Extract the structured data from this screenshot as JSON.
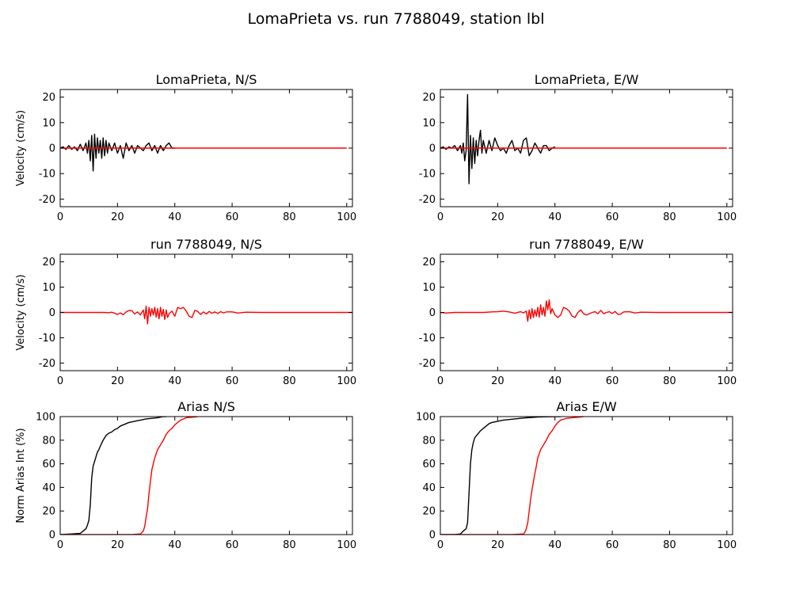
{
  "figure": {
    "title": "LomaPrieta vs. run 7788049, station lbl"
  },
  "colors": {
    "recorded": "#000000",
    "simulated": "#ff0000"
  },
  "chart_data": [
    {
      "type": "line",
      "id": "p1",
      "title": "LomaPrieta, N/S",
      "ylabel": "Velocity (cm/s)",
      "xlim": [
        0,
        102
      ],
      "ylim": [
        -23,
        23
      ],
      "xticks": [
        0,
        20,
        40,
        60,
        80,
        100
      ],
      "yticks": [
        -20,
        -10,
        0,
        10,
        20
      ],
      "series": [
        {
          "color": "#000000",
          "x": [
            0,
            1,
            2,
            3,
            4,
            5,
            6,
            7,
            8,
            9,
            9.5,
            10,
            10.5,
            11,
            11.5,
            12,
            12.5,
            13,
            13.5,
            14,
            14.5,
            15,
            15.5,
            16,
            16.5,
            17,
            18,
            19,
            20,
            21,
            22,
            23,
            24,
            25,
            26,
            27,
            28,
            29,
            30,
            31,
            32,
            33,
            34,
            35,
            36,
            37,
            38,
            39,
            40
          ],
          "y": [
            0,
            0.5,
            -0.5,
            1,
            -0.5,
            0.5,
            -1,
            1.5,
            -1,
            2,
            -2,
            3,
            -5,
            5,
            -9,
            5.5,
            -4,
            4,
            -2,
            3,
            -4,
            4,
            -3,
            3,
            -2,
            2,
            -1,
            2,
            -2,
            1,
            -4,
            2,
            -1,
            1,
            -2,
            1,
            0,
            -1,
            1,
            2,
            -1,
            1,
            -2,
            1,
            -1,
            1,
            2,
            0,
            0
          ]
        },
        {
          "color": "#ff0000",
          "x": [
            0,
            100
          ],
          "y": [
            0,
            0
          ]
        }
      ]
    },
    {
      "type": "line",
      "id": "p2",
      "title": "LomaPrieta, E/W",
      "ylabel": "",
      "xlim": [
        0,
        102
      ],
      "ylim": [
        -23,
        23
      ],
      "xticks": [
        0,
        20,
        40,
        60,
        80,
        100
      ],
      "yticks": [
        -20,
        -10,
        0,
        10,
        20
      ],
      "series": [
        {
          "color": "#000000",
          "x": [
            0,
            1,
            2,
            3,
            4,
            5,
            6,
            7,
            7.5,
            8,
            8.5,
            9,
            9.5,
            10,
            10.5,
            11,
            11.5,
            12,
            12.5,
            13,
            13.5,
            14,
            14.5,
            15,
            16,
            17,
            18,
            19,
            20,
            21,
            22,
            23,
            24,
            25,
            26,
            27,
            28,
            29,
            30,
            31,
            32,
            33,
            34,
            35,
            36,
            37,
            38,
            39,
            40
          ],
          "y": [
            0,
            0.5,
            -0.5,
            0.5,
            0,
            1,
            -1,
            1,
            -2,
            2,
            -5,
            -1,
            21,
            -14,
            5,
            -8,
            4,
            -6,
            3,
            -3,
            3,
            7,
            -2,
            3,
            -2,
            3,
            -1,
            4,
            1,
            -1,
            0,
            -2,
            1,
            3,
            -1,
            0,
            -2,
            3,
            4,
            -3,
            -1,
            2,
            0,
            -2,
            1,
            1,
            -1,
            0,
            0.5
          ]
        },
        {
          "color": "#ff0000",
          "x": [
            0,
            100
          ],
          "y": [
            0,
            0
          ]
        }
      ]
    },
    {
      "type": "line",
      "id": "p3",
      "title": "run 7788049, N/S",
      "ylabel": "Velocity (cm/s)",
      "xlim": [
        0,
        102
      ],
      "ylim": [
        -23,
        23
      ],
      "xticks": [
        0,
        20,
        40,
        60,
        80,
        100
      ],
      "yticks": [
        -20,
        -10,
        0,
        10,
        20
      ],
      "series": [
        {
          "color": "#ff0000",
          "x": [
            0,
            5,
            10,
            15,
            17,
            18,
            19,
            20,
            21,
            22,
            23,
            24,
            25,
            26,
            27,
            28,
            29,
            29.5,
            30,
            30.5,
            31,
            31.5,
            32,
            32.5,
            33,
            33.5,
            34,
            34.5,
            35,
            35.5,
            36,
            36.5,
            37,
            37.5,
            38,
            39,
            40,
            41,
            42,
            43,
            44,
            45,
            46,
            47,
            48,
            49,
            50,
            51,
            52,
            53,
            54,
            55,
            56,
            57,
            58,
            60,
            62,
            65,
            70,
            75,
            80,
            85,
            90,
            95,
            100,
            102
          ],
          "y": [
            0,
            0,
            0,
            0,
            -0.1,
            0.1,
            -0.3,
            -0.8,
            -0.2,
            -0.9,
            0.2,
            0.8,
            0.7,
            -0.6,
            0.2,
            -1,
            1,
            -2.5,
            2.5,
            -4.5,
            2,
            -1.5,
            1.5,
            -1,
            2,
            -1.8,
            1.5,
            -2.5,
            2,
            -1.5,
            1.2,
            -2.8,
            1,
            -2,
            -0.5,
            0.5,
            -1.5,
            2,
            1.5,
            2,
            0.5,
            -1.5,
            -2,
            0.8,
            0.4,
            -0.8,
            0.2,
            -0.6,
            0.4,
            -0.3,
            0.2,
            -0.4,
            0.3,
            -0.2,
            0.2,
            0.2,
            -0.2,
            0.1,
            0,
            0,
            0,
            0,
            0,
            0,
            0,
            0
          ]
        }
      ]
    },
    {
      "type": "line",
      "id": "p4",
      "title": "run 7788049, E/W",
      "ylabel": "",
      "xlim": [
        0,
        102
      ],
      "ylim": [
        -23,
        23
      ],
      "xticks": [
        0,
        20,
        40,
        60,
        80,
        100
      ],
      "yticks": [
        -20,
        -10,
        0,
        10,
        20
      ],
      "series": [
        {
          "color": "#ff0000",
          "x": [
            0,
            2,
            5,
            10,
            15,
            18,
            20,
            22,
            24,
            26,
            28,
            29,
            30,
            30.5,
            31,
            31.5,
            32,
            32.5,
            33,
            33.5,
            34,
            34.5,
            35,
            35.5,
            36,
            36.5,
            37,
            37.5,
            38,
            38.5,
            39,
            40,
            41,
            42,
            43,
            44,
            45,
            46,
            47,
            48,
            49,
            50,
            51,
            52,
            53,
            54,
            55,
            56,
            57,
            58,
            59,
            60,
            61,
            62,
            63,
            64,
            66,
            68,
            70,
            75,
            80,
            90,
            100,
            102
          ],
          "y": [
            0,
            -0.2,
            0,
            0,
            0,
            0.2,
            0.3,
            0.5,
            0.2,
            -0.3,
            0.3,
            -0.2,
            0.5,
            -3.5,
            1,
            -2.5,
            1.5,
            -2,
            1,
            -1.5,
            2,
            -1.8,
            3,
            -1,
            2,
            -1.5,
            4.5,
            1,
            5,
            -0.5,
            1.5,
            -1,
            -2,
            -1,
            2,
            1.5,
            0.5,
            -1.5,
            -2,
            0,
            1,
            -0.5,
            -1,
            -0.5,
            0,
            0.3,
            -0.5,
            0.8,
            -0.5,
            0,
            0.3,
            -0.4,
            0.4,
            -0.8,
            -0.6,
            0.2,
            0.3,
            -0.2,
            0.1,
            0,
            0,
            0,
            0,
            0
          ]
        }
      ]
    },
    {
      "type": "line",
      "id": "p5",
      "title": "Arias N/S",
      "ylabel": "Norm Arias Int (%)",
      "xlim": [
        0,
        102
      ],
      "ylim": [
        0,
        100
      ],
      "xticks": [
        0,
        20,
        40,
        60,
        80,
        100
      ],
      "yticks": [
        0,
        20,
        40,
        60,
        80,
        100
      ],
      "series": [
        {
          "color": "#000000",
          "x": [
            0,
            4,
            7,
            8,
            9,
            9.5,
            10,
            10.5,
            11,
            11.5,
            12,
            12.5,
            13,
            13.5,
            14,
            15,
            16,
            17,
            18,
            19,
            20,
            21,
            22,
            24,
            26,
            28,
            30,
            32,
            34,
            35,
            36,
            37
          ],
          "y": [
            0,
            0.5,
            1,
            3,
            5,
            8,
            12,
            25,
            48,
            58,
            62,
            66,
            70,
            72,
            75,
            80,
            84,
            86,
            87,
            89,
            90,
            92,
            93,
            95,
            96,
            97,
            98,
            98.5,
            99,
            99.5,
            100,
            100
          ]
        },
        {
          "color": "#ff0000",
          "x": [
            0,
            25,
            28,
            29,
            29.5,
            30,
            30.5,
            31,
            31.5,
            32,
            32.5,
            33,
            34,
            35,
            36,
            37,
            38,
            39,
            40,
            41,
            42,
            44,
            46,
            48
          ],
          "y": [
            0,
            0,
            0.5,
            3,
            7,
            15,
            22,
            35,
            45,
            55,
            60,
            65,
            72,
            76,
            80,
            85,
            88,
            90,
            93,
            95,
            97,
            99,
            99.5,
            100
          ]
        }
      ]
    },
    {
      "type": "line",
      "id": "p6",
      "title": "Arias E/W",
      "ylabel": "",
      "xlim": [
        0,
        102
      ],
      "ylim": [
        0,
        100
      ],
      "xticks": [
        0,
        20,
        40,
        60,
        80,
        100
      ],
      "yticks": [
        0,
        20,
        40,
        60,
        80,
        100
      ],
      "series": [
        {
          "color": "#000000",
          "x": [
            0,
            5,
            7,
            8,
            9,
            9.5,
            10,
            10.5,
            11,
            11.5,
            12,
            13,
            14,
            15,
            16,
            17,
            18,
            20,
            22,
            24,
            26,
            28,
            30,
            32,
            34,
            36,
            38,
            40,
            42
          ],
          "y": [
            0,
            0,
            0.5,
            3,
            5,
            10,
            35,
            60,
            72,
            78,
            82,
            85,
            88,
            90,
            92,
            94,
            95,
            96,
            97,
            97.5,
            98,
            98.5,
            99,
            99.3,
            99.6,
            99.8,
            99.9,
            100,
            100
          ]
        },
        {
          "color": "#ff0000",
          "x": [
            0,
            25,
            29,
            29.5,
            30,
            30.5,
            31,
            31.5,
            32,
            32.5,
            33,
            33.5,
            34,
            35,
            36,
            36.5,
            37,
            38,
            39,
            40,
            41,
            42,
            44,
            46,
            48,
            50
          ],
          "y": [
            0,
            0,
            0.5,
            2,
            5,
            10,
            20,
            30,
            38,
            45,
            52,
            58,
            65,
            72,
            76,
            78,
            80,
            85,
            88,
            92,
            95,
            97,
            98.5,
            99,
            99.5,
            100
          ]
        }
      ]
    }
  ]
}
